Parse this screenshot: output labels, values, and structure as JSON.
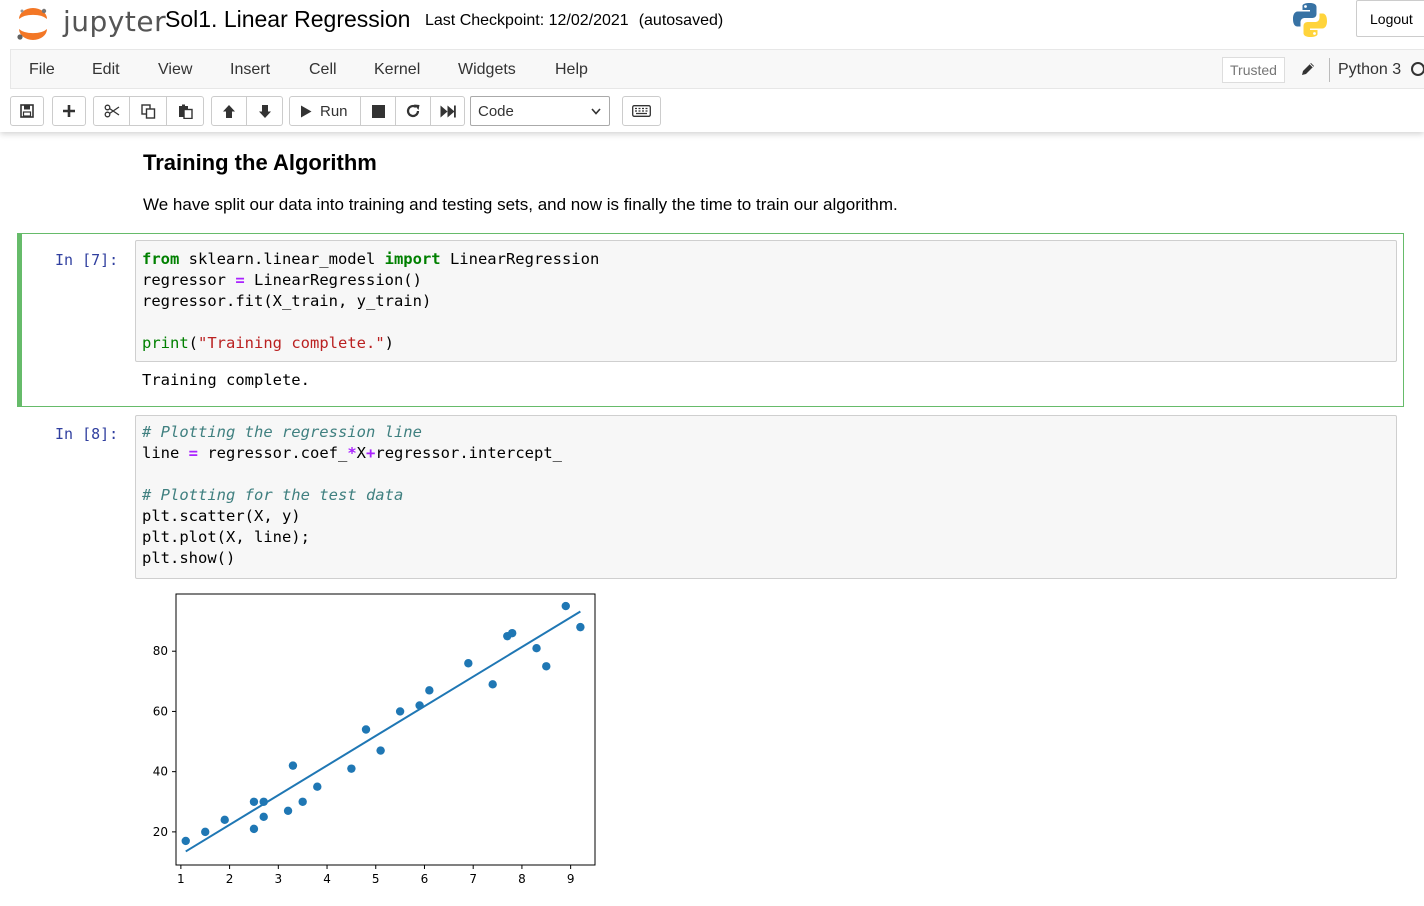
{
  "header": {
    "logo_text": "jupyter",
    "notebook_name": "Sol1. Linear Regression",
    "checkpoint": "Last Checkpoint: 12/02/2021",
    "autosave": "(autosaved)",
    "logout_label": "Logout"
  },
  "menubar": {
    "items": [
      "File",
      "Edit",
      "View",
      "Insert",
      "Cell",
      "Kernel",
      "Widgets",
      "Help"
    ],
    "trusted_label": "Trusted",
    "kernel_name": "Python 3"
  },
  "toolbar": {
    "run_label": "Run",
    "cell_type": "Code"
  },
  "markdown": {
    "heading": "Training the Algorithm",
    "paragraph": "We have split our data into training and testing sets, and now is finally the time to train our algorithm."
  },
  "cells": [
    {
      "prompt": "In [7]:",
      "output": "Training complete."
    },
    {
      "prompt": "In [8]:"
    }
  ],
  "chart_data": {
    "type": "scatter",
    "xlim": [
      0.9,
      9.5
    ],
    "ylim": [
      9,
      99
    ],
    "xticks": [
      "1",
      "2",
      "3",
      "4",
      "5",
      "6",
      "7",
      "8",
      "9"
    ],
    "yticks": [
      "20",
      "40",
      "60",
      "80"
    ],
    "points_x": [
      1.1,
      1.5,
      1.9,
      2.5,
      2.5,
      2.7,
      2.7,
      3.2,
      3.3,
      3.5,
      3.8,
      4.5,
      4.8,
      5.1,
      5.5,
      5.9,
      6.1,
      6.9,
      7.4,
      7.7,
      7.8,
      8.3,
      8.5,
      8.9,
      9.2
    ],
    "points_y": [
      17,
      20,
      24,
      21,
      30,
      25,
      30,
      27,
      42,
      30,
      35,
      41,
      54,
      47,
      60,
      62,
      67,
      76,
      69,
      85,
      86,
      81,
      75,
      95,
      88
    ],
    "line_x": [
      1.1,
      9.2
    ],
    "line_y": [
      13.5,
      93.2
    ],
    "colors": {
      "series": "#1f77b4"
    }
  }
}
